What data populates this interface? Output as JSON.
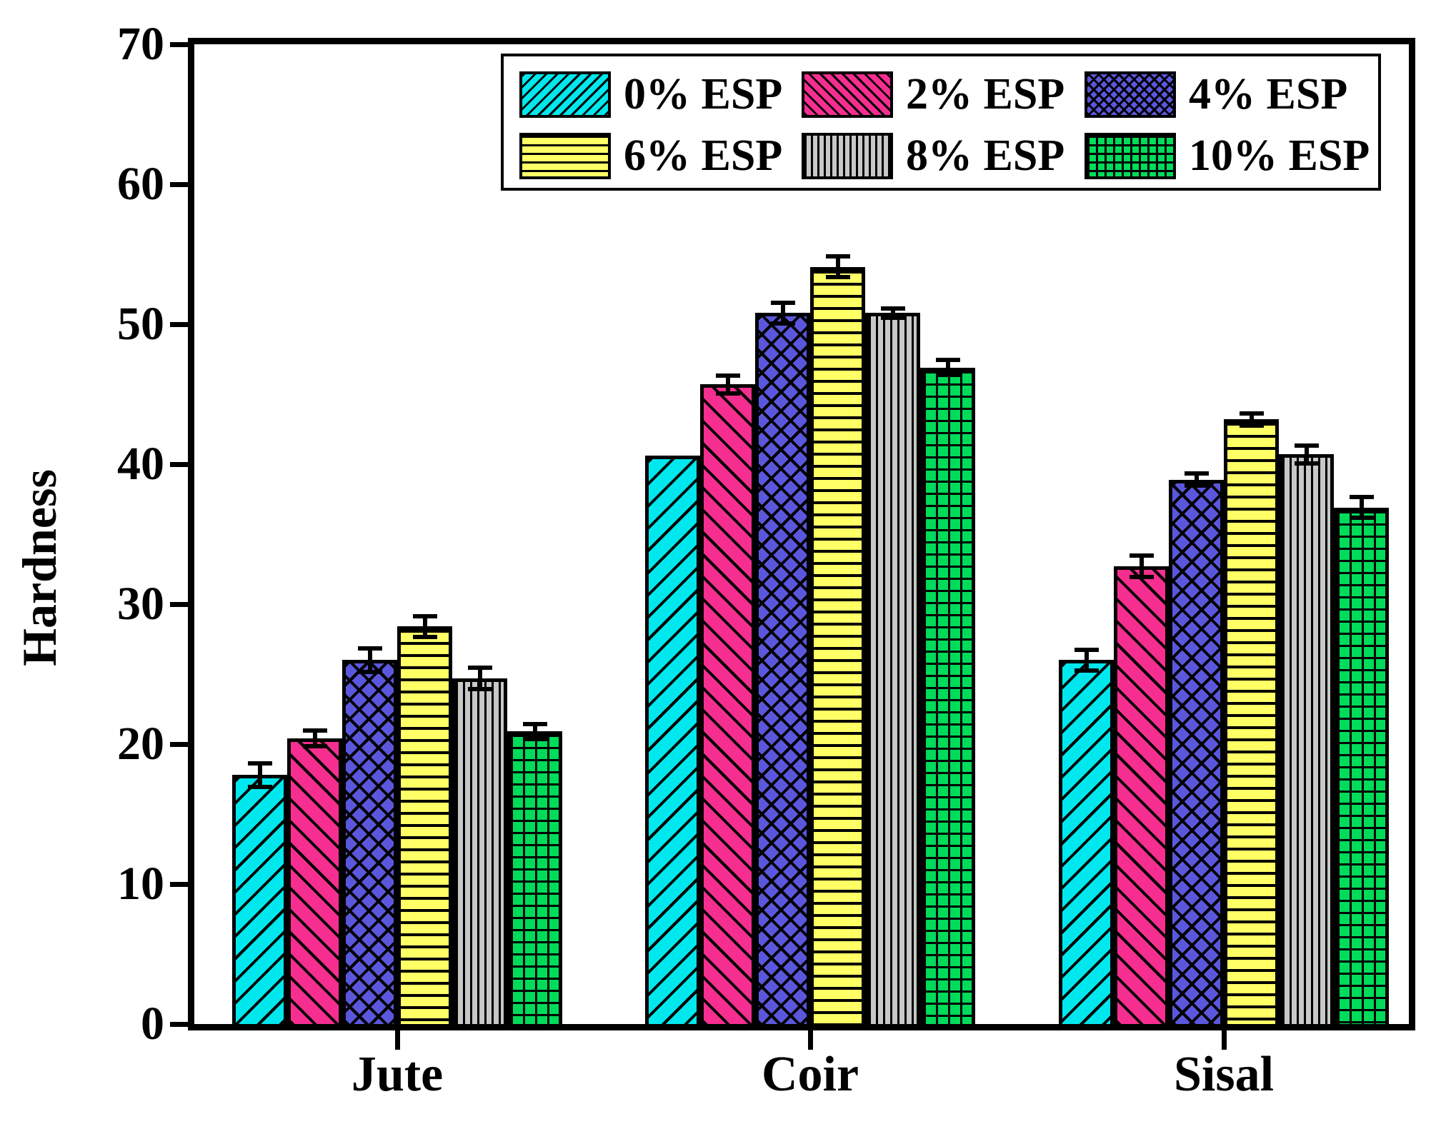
{
  "figure": {
    "background_color": "#FFFFFF",
    "text_color": "#000000",
    "axis_color": "#000000"
  },
  "chart_data": {
    "type": "bar",
    "title": "",
    "xlabel": "",
    "ylabel": "Hardness",
    "ylim": [
      0,
      70
    ],
    "yticks": [
      0,
      10,
      20,
      30,
      40,
      50,
      60,
      70
    ],
    "grid": false,
    "legend_position": "top-center-inside",
    "error_bars": true,
    "categories": [
      "Jute",
      "Coir",
      "Sisal"
    ],
    "series": [
      {
        "name": "0% ESP",
        "color": "#00E8EE",
        "hatch": "diagonal-up",
        "values": [
          17.8,
          40.6,
          26.0
        ],
        "errors": [
          1.0,
          0.0,
          0.9
        ]
      },
      {
        "name": "2% ESP",
        "color": "#F52E90",
        "hatch": "diagonal-down",
        "values": [
          20.4,
          45.7,
          32.7
        ],
        "errors": [
          0.7,
          0.8,
          0.9
        ]
      },
      {
        "name": "4% ESP",
        "color": "#5B57DD",
        "hatch": "cross-diagonal",
        "values": [
          26.0,
          50.8,
          38.9
        ],
        "errors": [
          1.0,
          0.9,
          0.6
        ]
      },
      {
        "name": "6% ESP",
        "color": "#FFFF66",
        "hatch": "horizontal",
        "values": [
          28.4,
          54.1,
          43.2
        ],
        "errors": [
          0.9,
          0.9,
          0.6
        ]
      },
      {
        "name": "8% ESP",
        "color": "#C8C8C8",
        "hatch": "vertical",
        "values": [
          24.7,
          50.8,
          40.7
        ],
        "errors": [
          0.9,
          0.5,
          0.8
        ]
      },
      {
        "name": "10% ESP",
        "color": "#00DC5A",
        "hatch": "grid",
        "values": [
          20.9,
          46.9,
          36.9
        ],
        "errors": [
          0.7,
          0.7,
          0.9
        ]
      }
    ]
  }
}
